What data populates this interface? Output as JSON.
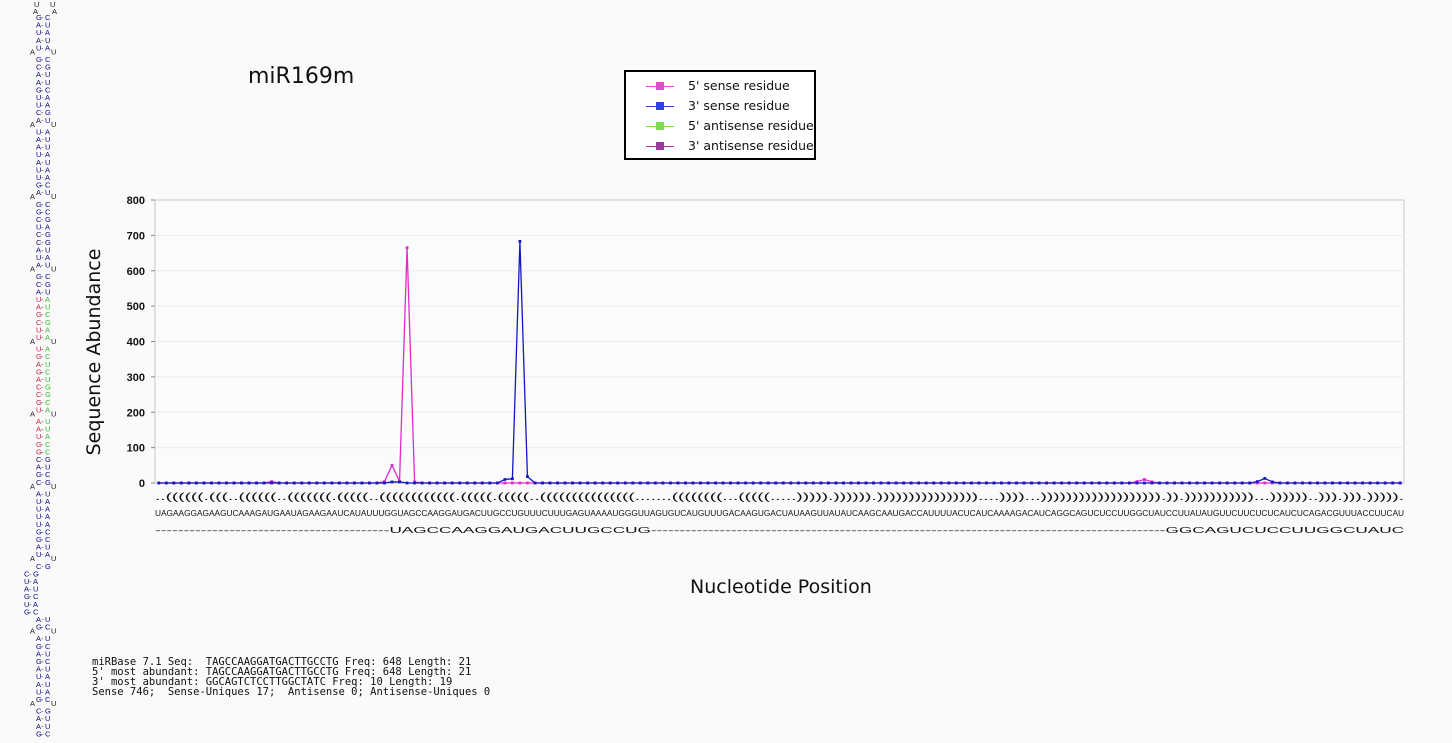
{
  "title": "miR169m",
  "legend": [
    {
      "label": "5' sense residue",
      "color": "#e34bc8"
    },
    {
      "label": "3' sense residue",
      "color": "#3040d8"
    },
    {
      "label": "5' antisense residue",
      "color": "#7ed957"
    },
    {
      "label": "3' antisense residue",
      "color": "#9a3a9a"
    }
  ],
  "chart_data": {
    "type": "line",
    "xlabel": "Nucleotide Position",
    "ylabel": "Sequence Abundance",
    "ylim": [
      0,
      800
    ],
    "yticks": [
      "0",
      "100",
      "200",
      "300",
      "400",
      "500",
      "600",
      "700",
      "800"
    ],
    "n_positions": 166,
    "series": [
      {
        "name": "5' sense residue",
        "color": "#e02ad0",
        "points": [
          [
            15,
            4
          ],
          [
            30,
            4
          ],
          [
            31,
            50
          ],
          [
            32,
            5
          ],
          [
            33,
            665
          ],
          [
            34,
            3
          ],
          [
            130,
            4
          ],
          [
            131,
            10
          ],
          [
            132,
            3
          ]
        ]
      },
      {
        "name": "3' sense residue",
        "color": "#1418c0",
        "points": [
          [
            31,
            3
          ],
          [
            32,
            3
          ],
          [
            46,
            10
          ],
          [
            47,
            12
          ],
          [
            48,
            683
          ],
          [
            49,
            18
          ],
          [
            146,
            4
          ],
          [
            147,
            13
          ],
          [
            148,
            3
          ]
        ]
      },
      {
        "name": "5' antisense residue",
        "color": "#7ed957",
        "points": []
      },
      {
        "name": "3' antisense residue",
        "color": "#9a3a9a",
        "points": []
      }
    ],
    "structure": "..((((((.(((..((((((..(((((((.(((((..((((((((((((.(((((.(((((..(((((((((((((((.......((((((((...(((((.....))))).)))))).))))))))))))))))....))))...))))))))))))))))))).)).)))))))))))...))))))..))).))).))))).",
    "sequence": "UAGAAGGAGAAGUCAAAGAUGAAUAGAAGAAUCAUAUUUGGUAGCCAAGGAUGACUUGCCUGUUUCUUUGAGUAAAAUGGGUUAGUGUCAUGUUUGACAAGUGACUAUAAGUUAUAUCAAGCAAUGACCAUUUUACUCAUCAAAAGACAUCAGGCAGUCUCCUUGGCUAUCCUUAUAUGUUCUUCUCUCAUCUCAGACGUUUACCUUCAU",
    "mature_5p": "UAGCCAAGGAUGACUUGCCUG",
    "mature_3p": "GGCAGUCUCCUUGGCUAUC"
  },
  "stats": [
    "miRBase 7.1 Seq:  TAGCCAAGGATGACTTGCCTG Freq: 648 Length: 21",
    "5' most abundant: TAGCCAAGGATGACTTGCCTG Freq: 648 Length: 21",
    "3' most abundant: GGCAGTCTCCTTGGCTATC Freq: 10 Length: 19",
    "Sense 746;  Sense-Uniques 17;  Antisense 0; Antisense-Uniques 0"
  ],
  "hairpin": {
    "colors": {
      "default": "#0a0a80",
      "mature_5p": "#cc2040",
      "mature_3p": "#33bb33",
      "loop": "#222222"
    }
  }
}
